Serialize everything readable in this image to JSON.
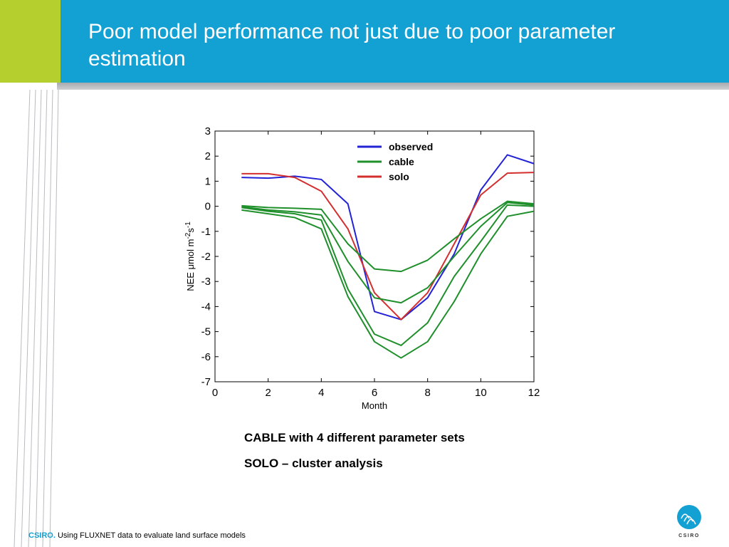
{
  "slide": {
    "title": "Poor model performance not just due to poor parameter estimation",
    "captions": [
      "CABLE with 4 different parameter sets",
      "SOLO – cluster analysis"
    ],
    "footer": {
      "brand": "CSIRO.",
      "text": "Using FLUXNET data to evaluate land surface models"
    },
    "logo_text": "CSIRO",
    "colors": {
      "header_blue": "#13a0d3",
      "accent_green": "#b5cf2e",
      "observed": "#2323d6",
      "cable": "#1f8f2b",
      "solo": "#d42f2f"
    }
  },
  "chart_data": {
    "type": "line",
    "title": "",
    "xlabel": "Month",
    "ylabel_parts": [
      "NEE ",
      "μ",
      "mol m",
      "-2",
      "s",
      "-1"
    ],
    "xlim": [
      0,
      12
    ],
    "ylim": [
      -7,
      3
    ],
    "xticks": [
      0,
      2,
      4,
      6,
      8,
      10,
      12
    ],
    "yticks": [
      3,
      2,
      1,
      0,
      -1,
      -2,
      -3,
      -4,
      -5,
      -6,
      -7
    ],
    "grid": false,
    "legend_position": "top-right",
    "legend": [
      "observed",
      "cable",
      "solo"
    ],
    "x": [
      1,
      2,
      3,
      4,
      5,
      6,
      7,
      8,
      9,
      10,
      11,
      12
    ],
    "series": [
      {
        "name": "observed",
        "color": "#2323d6",
        "values": [
          1.15,
          1.12,
          1.2,
          1.07,
          0.1,
          -4.2,
          -4.52,
          -3.65,
          -1.9,
          0.65,
          2.05,
          1.7
        ]
      },
      {
        "name": "solo",
        "color": "#d42f2f",
        "values": [
          1.3,
          1.3,
          1.15,
          0.6,
          -0.9,
          -3.45,
          -4.52,
          -3.45,
          -1.5,
          0.45,
          1.32,
          1.35
        ]
      },
      {
        "name": "cable",
        "color": "#1f8f2b",
        "values": [
          0.02,
          -0.05,
          -0.08,
          -0.12,
          -1.5,
          -2.5,
          -2.6,
          -2.15,
          -1.3,
          -0.5,
          0.2,
          0.1
        ]
      },
      {
        "name": "cable",
        "color": "#1f8f2b",
        "values": [
          -0.02,
          -0.15,
          -0.22,
          -0.35,
          -2.2,
          -3.65,
          -3.85,
          -3.25,
          -2.0,
          -0.8,
          0.15,
          0.05
        ]
      },
      {
        "name": "cable",
        "color": "#1f8f2b",
        "values": [
          -0.05,
          -0.2,
          -0.3,
          -0.55,
          -3.3,
          -5.1,
          -5.55,
          -4.65,
          -2.8,
          -1.4,
          0.05,
          0.0
        ]
      },
      {
        "name": "cable",
        "color": "#1f8f2b",
        "values": [
          -0.15,
          -0.3,
          -0.45,
          -0.9,
          -3.6,
          -5.4,
          -6.05,
          -5.4,
          -3.8,
          -1.9,
          -0.4,
          -0.2
        ]
      }
    ]
  }
}
